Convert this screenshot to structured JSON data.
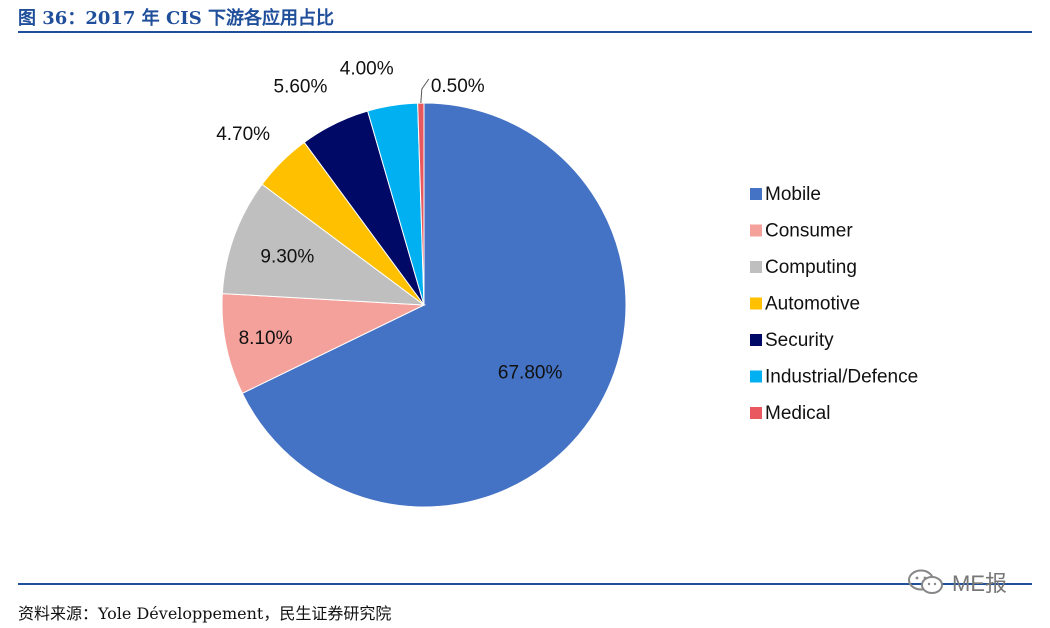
{
  "header": {
    "title": "图 36：2017 年 CIS 下游各应用占比"
  },
  "footer": {
    "source": "资料来源：Yole Développement，民生证券研究院"
  },
  "watermark": {
    "text": "ME报"
  },
  "colors": {
    "rule": "#1f4e9a",
    "Mobile": "#4472c4",
    "Consumer": "#f4a19b",
    "Computing": "#bfbfbf",
    "Automotive": "#ffc000",
    "Security": "#000a66",
    "Industrial/Defence": "#00b0f0",
    "Medical": "#e8585e"
  },
  "chart_data": {
    "type": "pie",
    "title": "2017 年 CIS 下游各应用占比",
    "categories": [
      "Mobile",
      "Consumer",
      "Computing",
      "Automotive",
      "Security",
      "Industrial/Defence",
      "Medical"
    ],
    "values": [
      67.8,
      8.1,
      9.3,
      4.7,
      5.6,
      4.0,
      0.5
    ],
    "data_labels": [
      "67.80%",
      "8.10%",
      "9.30%",
      "4.70%",
      "5.60%",
      "4.00%",
      "0.50%"
    ],
    "start": "top",
    "direction": "clockwise",
    "legend_position": "right"
  }
}
